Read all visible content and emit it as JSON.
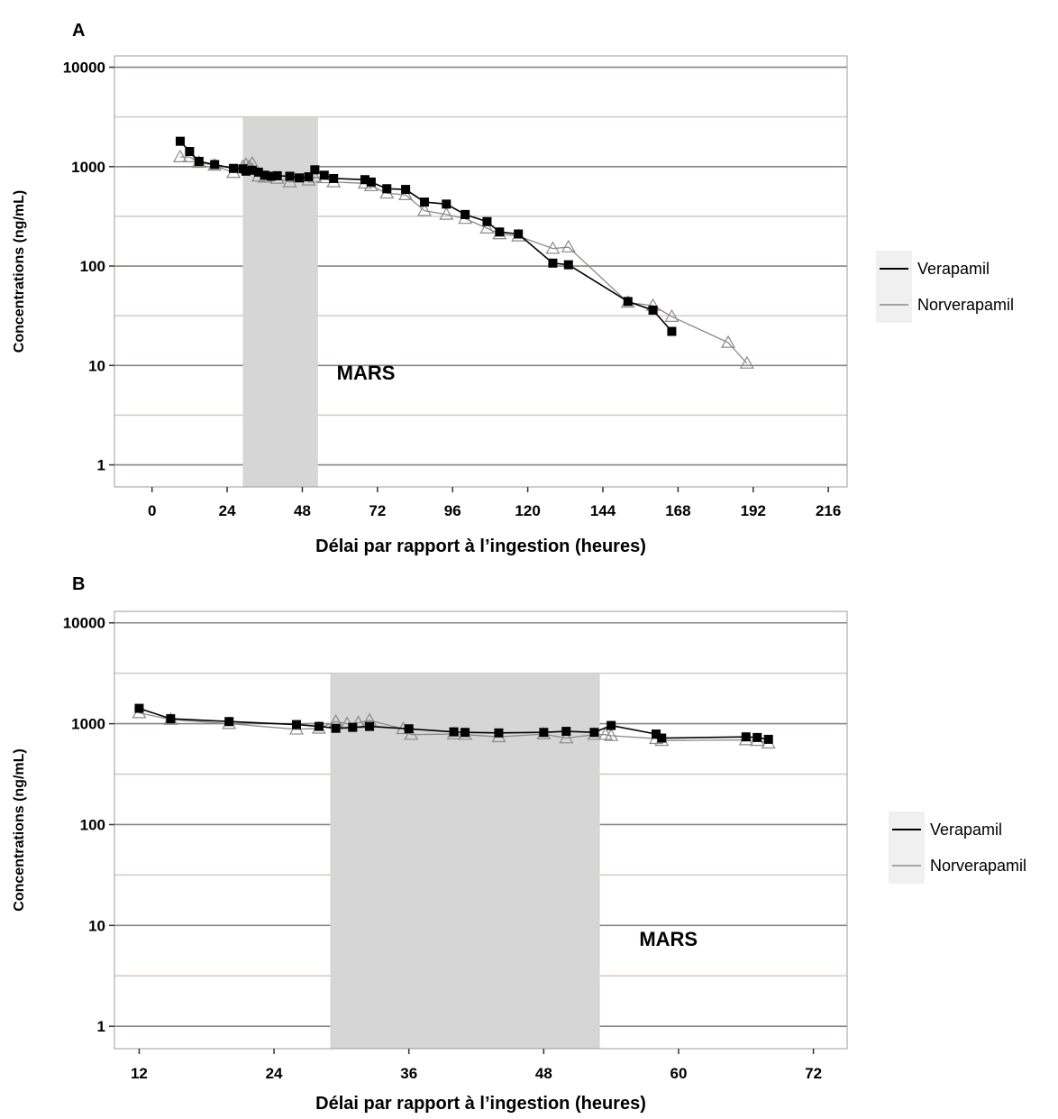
{
  "colors": {
    "major_grid": "#8a8478",
    "minor_grid": "#d8c8bc",
    "shade": "#d6d6d6",
    "verapamil": "#000000",
    "norverapamil": "#8a8a8a",
    "legend_key_bg": "#f0f0f0",
    "panel_border": "#9e9e9e"
  },
  "chart_data": [
    {
      "panel_label": "A",
      "type": "line",
      "xlabel": "Délai par rapport à l’ingestion (heures)",
      "ylabel": "Concentrations (ng/mL)",
      "xlim": [
        -12,
        222
      ],
      "xticks": [
        0,
        24,
        48,
        72,
        96,
        120,
        144,
        168,
        192,
        216
      ],
      "xtick_labels": [
        "0",
        "24",
        "48",
        "72",
        "96",
        "120",
        "144",
        "168",
        "192",
        "216"
      ],
      "y_scale": "log",
      "ylim": [
        0.6,
        13000
      ],
      "yticks": [
        1,
        10,
        100,
        1000,
        10000
      ],
      "ytick_labels": [
        "1",
        "10",
        "100",
        "1000",
        "10000"
      ],
      "shaded_region": {
        "x0": 29,
        "x1": 53,
        "y_top": 3162
      },
      "annotation": {
        "text": "MARS",
        "x": 59,
        "y": 7.2
      },
      "legend": {
        "position": "right",
        "entries": [
          "Verapamil",
          "Norverapamil"
        ]
      },
      "series": [
        {
          "name": "Verapamil",
          "marker": "square",
          "points": [
            [
              9,
              1800
            ],
            [
              12,
              1420
            ],
            [
              15,
              1130
            ],
            [
              20,
              1050
            ],
            [
              26,
              960
            ],
            [
              29,
              950
            ],
            [
              30,
              900
            ],
            [
              32,
              920
            ],
            [
              34,
              880
            ],
            [
              36,
              820
            ],
            [
              38,
              800
            ],
            [
              40,
              810
            ],
            [
              44,
              800
            ],
            [
              47,
              770
            ],
            [
              50,
              790
            ],
            [
              52,
              930
            ],
            [
              55,
              820
            ],
            [
              58,
              760
            ],
            [
              68,
              740
            ],
            [
              70,
              700
            ],
            [
              75,
              600
            ],
            [
              81,
              590
            ],
            [
              87,
              440
            ],
            [
              94,
              420
            ],
            [
              100,
              330
            ],
            [
              107,
              280
            ],
            [
              111,
              220
            ],
            [
              117,
              210
            ],
            [
              128,
              107
            ],
            [
              133,
              103
            ],
            [
              152,
              44
            ],
            [
              160,
              36
            ],
            [
              166,
              22
            ]
          ]
        },
        {
          "name": "Norverapamil",
          "marker": "triangle",
          "points": [
            [
              9,
              1250
            ],
            [
              12,
              1250
            ],
            [
              15,
              1100
            ],
            [
              20,
              1030
            ],
            [
              26,
              870
            ],
            [
              29,
              1000
            ],
            [
              30,
              1050
            ],
            [
              31,
              1000
            ],
            [
              32,
              1080
            ],
            [
              34,
              800
            ],
            [
              36,
              780
            ],
            [
              40,
              760
            ],
            [
              44,
              700
            ],
            [
              50,
              730
            ],
            [
              52,
              780
            ],
            [
              55,
              770
            ],
            [
              58,
              700
            ],
            [
              68,
              680
            ],
            [
              70,
              640
            ],
            [
              75,
              540
            ],
            [
              81,
              520
            ],
            [
              87,
              360
            ],
            [
              94,
              330
            ],
            [
              100,
              300
            ],
            [
              107,
              240
            ],
            [
              111,
              210
            ],
            [
              117,
              200
            ],
            [
              128,
              150
            ],
            [
              133,
              155
            ],
            [
              152,
              43
            ],
            [
              160,
              40
            ],
            [
              166,
              31
            ],
            [
              184,
              17
            ],
            [
              190,
              10.5
            ]
          ]
        }
      ]
    },
    {
      "panel_label": "B",
      "type": "line",
      "xlabel": "Délai par rapport à l’ingestion (heures)",
      "ylabel": "Concentrations (ng/mL)",
      "xlim": [
        9.8,
        75
      ],
      "xticks": [
        12,
        24,
        36,
        48,
        60,
        72
      ],
      "xtick_labels": [
        "12",
        "24",
        "36",
        "48",
        "60",
        "72"
      ],
      "y_scale": "log",
      "ylim": [
        0.6,
        13000
      ],
      "yticks": [
        1,
        10,
        100,
        1000,
        10000
      ],
      "ytick_labels": [
        "1",
        "10",
        "100",
        "1000",
        "10000"
      ],
      "shaded_region": {
        "x0": 29,
        "x1": 53,
        "y_top": 3162
      },
      "annotation": {
        "text": "MARS",
        "x": 56.5,
        "y": 6.3
      },
      "legend": {
        "position": "right",
        "entries": [
          "Verapamil",
          "Norverapamil"
        ]
      },
      "series": [
        {
          "name": "Verapamil",
          "marker": "square",
          "points": [
            [
              12,
              1420
            ],
            [
              14.8,
              1120
            ],
            [
              20,
              1050
            ],
            [
              26,
              980
            ],
            [
              28,
              940
            ],
            [
              29.5,
              900
            ],
            [
              31,
              920
            ],
            [
              32.5,
              940
            ],
            [
              36,
              890
            ],
            [
              40,
              830
            ],
            [
              41,
              820
            ],
            [
              44,
              810
            ],
            [
              48,
              820
            ],
            [
              50,
              840
            ],
            [
              52.5,
              820
            ],
            [
              54,
              960
            ],
            [
              58,
              790
            ],
            [
              58.5,
              720
            ],
            [
              66,
              740
            ],
            [
              67,
              730
            ],
            [
              68,
              700
            ]
          ]
        },
        {
          "name": "Norverapamil",
          "marker": "triangle",
          "points": [
            [
              12,
              1280
            ],
            [
              14.8,
              1100
            ],
            [
              20,
              1000
            ],
            [
              26,
              880
            ],
            [
              28,
              900
            ],
            [
              29.5,
              1050
            ],
            [
              30.5,
              1000
            ],
            [
              31.5,
              1020
            ],
            [
              32.5,
              1080
            ],
            [
              35.5,
              890
            ],
            [
              36.2,
              780
            ],
            [
              40,
              790
            ],
            [
              41,
              780
            ],
            [
              44,
              740
            ],
            [
              48,
              790
            ],
            [
              50,
              720
            ],
            [
              52.5,
              780
            ],
            [
              53.5,
              780
            ],
            [
              54,
              760
            ],
            [
              58,
              710
            ],
            [
              58.5,
              680
            ],
            [
              66,
              690
            ],
            [
              67,
              680
            ],
            [
              68,
              640
            ]
          ]
        }
      ]
    }
  ]
}
